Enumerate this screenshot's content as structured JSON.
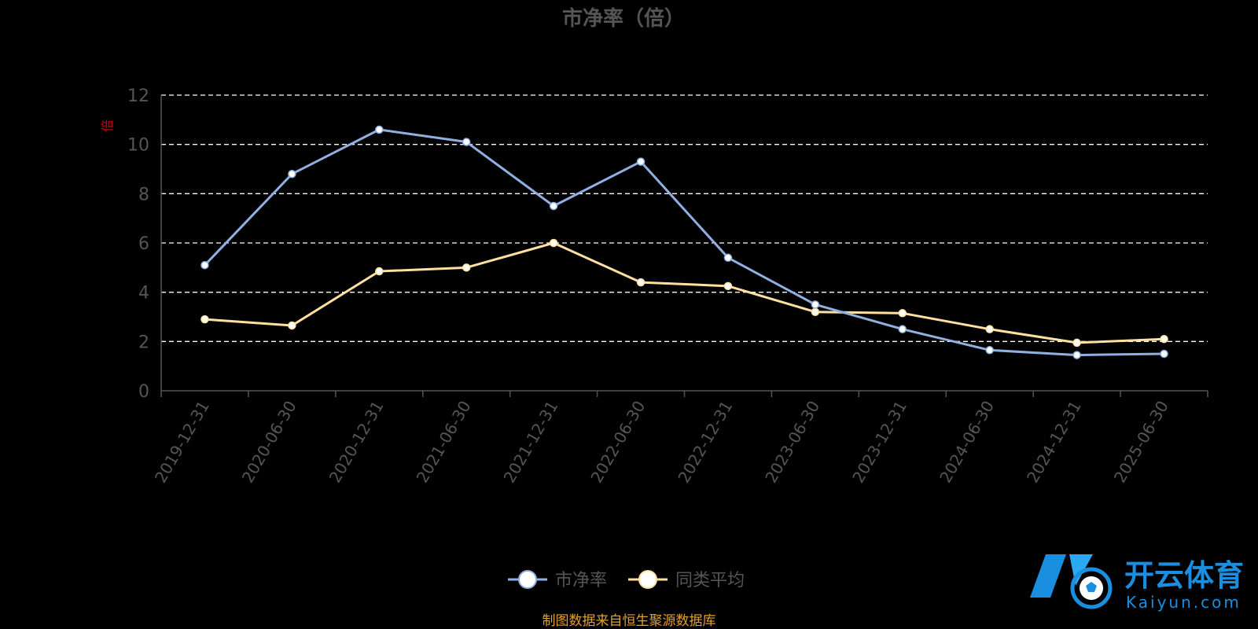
{
  "chart_data": {
    "type": "line",
    "title": "市净率（倍）",
    "ylabel": "倍",
    "categories": [
      "2019-12-31",
      "2020-06-30",
      "2020-12-31",
      "2021-06-30",
      "2021-12-31",
      "2022-06-30",
      "2022-12-31",
      "2023-06-30",
      "2023-12-31",
      "2024-06-30",
      "2024-12-31",
      "2025-06-30"
    ],
    "yticks": [
      "0",
      "2",
      "4",
      "6",
      "8",
      "10",
      "12"
    ],
    "ylim": [
      0,
      12
    ],
    "grid": true,
    "legend_position": "bottom",
    "series": [
      {
        "name": "市净率",
        "color": "#8fb0e0",
        "values": [
          5.1,
          8.8,
          10.6,
          10.1,
          7.5,
          9.3,
          5.4,
          3.5,
          2.5,
          1.65,
          1.45,
          1.5
        ]
      },
      {
        "name": "同类平均",
        "color": "#ffe0a0",
        "values": [
          2.9,
          2.65,
          4.85,
          5.0,
          6.0,
          4.4,
          4.25,
          3.2,
          3.15,
          2.5,
          1.95,
          2.1
        ]
      }
    ]
  },
  "footer": {
    "source_text": "制图数据来自恒生聚源数据库"
  },
  "watermark": {
    "brand_cn": "开云体育",
    "brand_en": "Kaiyun.com"
  },
  "colors": {
    "background": "#000000",
    "title": "#555555",
    "axis_text": "#555555",
    "grid": "#ffffff",
    "ylabel": "#cc0000",
    "credit": "#e0a030",
    "watermark": "#1a8fe0"
  }
}
